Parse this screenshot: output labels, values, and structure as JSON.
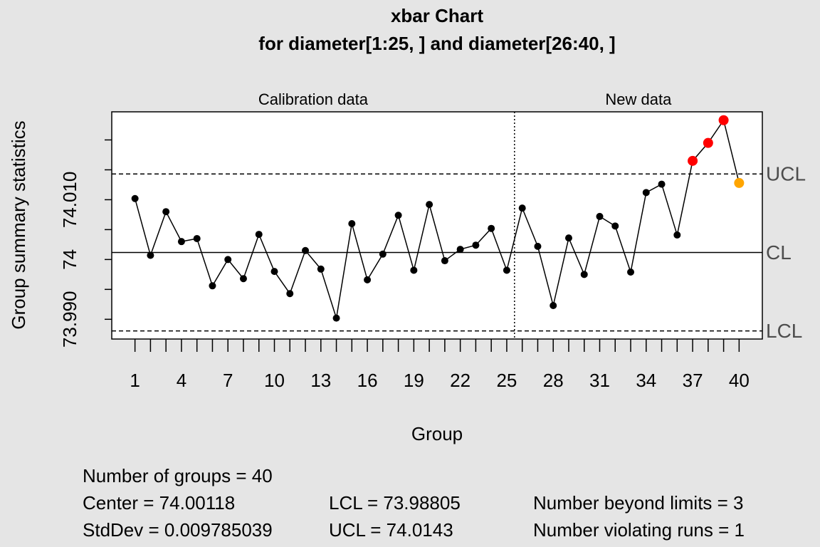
{
  "chart_data": {
    "type": "qcc",
    "title": [
      "xbar Chart",
      "for diameter[1:25, ] and diameter[26:40, ]"
    ],
    "x_label": "Group",
    "y_label": "Group summary statistics",
    "sections": [
      {
        "label": "Calibration data",
        "from": 1,
        "to": 25
      },
      {
        "label": "New data",
        "from": 26,
        "to": 40
      }
    ],
    "x": [
      1,
      2,
      3,
      4,
      5,
      6,
      7,
      8,
      9,
      10,
      11,
      12,
      13,
      14,
      15,
      16,
      17,
      18,
      19,
      20,
      21,
      22,
      23,
      24,
      25,
      26,
      27,
      28,
      29,
      30,
      31,
      32,
      33,
      34,
      35,
      36,
      37,
      38,
      39,
      40
    ],
    "values": [
      74.0102,
      74.0007,
      74.008,
      74.003,
      74.0035,
      73.9956,
      74.0,
      73.9968,
      74.0042,
      73.998,
      73.9943,
      74.0015,
      73.9984,
      73.9902,
      74.006,
      73.9966,
      74.0009,
      74.0074,
      73.9982,
      74.0092,
      73.9998,
      74.0017,
      74.0024,
      74.0052,
      73.9982,
      74.0086,
      74.0022,
      73.9923,
      74.0036,
      73.9975,
      74.0072,
      74.0056,
      73.9979,
      74.0112,
      74.0126,
      74.0041,
      74.0165,
      74.0195,
      74.0233,
      74.0128
    ],
    "colors": [
      "#000",
      "#000",
      "#000",
      "#000",
      "#000",
      "#000",
      "#000",
      "#000",
      "#000",
      "#000",
      "#000",
      "#000",
      "#000",
      "#000",
      "#000",
      "#000",
      "#000",
      "#000",
      "#000",
      "#000",
      "#000",
      "#000",
      "#000",
      "#000",
      "#000",
      "#000",
      "#000",
      "#000",
      "#000",
      "#000",
      "#000",
      "#000",
      "#000",
      "#000",
      "#000",
      "#000",
      "#ff0000",
      "#ff0000",
      "#ff0000",
      "#ffa500"
    ],
    "limits": [
      {
        "label": "UCL",
        "value": 74.0143,
        "dash": true
      },
      {
        "label": "CL",
        "value": 74.00118,
        "dash": false
      },
      {
        "label": "LCL",
        "value": 73.98805,
        "dash": true
      }
    ],
    "xlim": [
      -0.5,
      41.5
    ],
    "ylim": [
      73.9867,
      74.0247
    ],
    "xticks": [
      1,
      4,
      7,
      10,
      13,
      16,
      19,
      22,
      25,
      28,
      31,
      34,
      37,
      40
    ],
    "yticks": [
      {
        "value": 73.99,
        "label": "73.990"
      },
      {
        "value": 74,
        "label": "74"
      },
      {
        "value": 74.01,
        "label": "74.010"
      }
    ],
    "yminor": [
      73.995,
      74.005,
      74.015,
      74.02
    ],
    "stats": [
      [
        "Number of groups = 40"
      ],
      [
        "Center = 74.00118",
        "LCL = 73.98805",
        "Number beyond limits = 3"
      ],
      [
        "StdDev = 0.009785039",
        "UCL = 74.0143",
        "Number violating runs = 1"
      ]
    ]
  }
}
